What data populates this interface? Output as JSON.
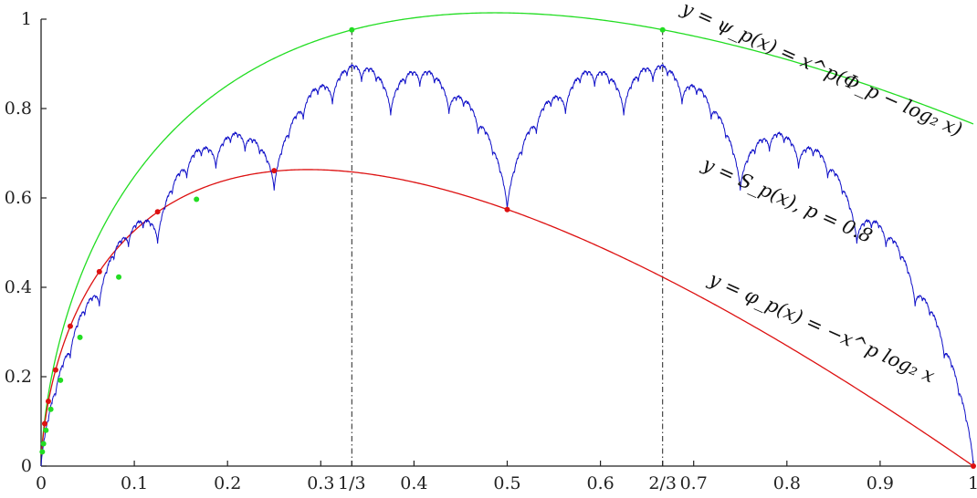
{
  "chart_data": {
    "type": "line",
    "xlim": [
      0,
      1
    ],
    "ylim": [
      0,
      1
    ],
    "grid": false,
    "x_ticks": [
      {
        "value": 0,
        "label": "0"
      },
      {
        "value": 0.1,
        "label": "0.1"
      },
      {
        "value": 0.2,
        "label": "0.2"
      },
      {
        "value": 0.3,
        "label": "0.3"
      },
      {
        "value": 0.3333,
        "label": "1/3"
      },
      {
        "value": 0.4,
        "label": "0.4"
      },
      {
        "value": 0.5,
        "label": "0.5"
      },
      {
        "value": 0.6,
        "label": "0.6"
      },
      {
        "value": 0.6667,
        "label": "2/3"
      },
      {
        "value": 0.7,
        "label": "0.7"
      },
      {
        "value": 0.8,
        "label": "0.8"
      },
      {
        "value": 0.9,
        "label": "0.9"
      },
      {
        "value": 1,
        "label": "1"
      }
    ],
    "y_ticks": [
      {
        "value": 0,
        "label": "0"
      },
      {
        "value": 0.2,
        "label": "0.2"
      },
      {
        "value": 0.4,
        "label": "0.4"
      },
      {
        "value": 0.6,
        "label": "0.6"
      },
      {
        "value": 0.8,
        "label": "0.8"
      },
      {
        "value": 1,
        "label": "1"
      }
    ],
    "parameter_p": 0.8,
    "series": [
      {
        "name": "y = ψ_p(x) = x^p(Φ_p − log₂ x)",
        "color": "#22dd22",
        "x": [
          0.0078,
          0.0156,
          0.0313,
          0.0625,
          0.125,
          0.1667,
          0.25,
          0.3333,
          0.4,
          0.5,
          0.6,
          0.6667,
          0.75,
          0.875,
          1.0
        ],
        "y": [
          0.064,
          0.127,
          0.286,
          0.471,
          0.684,
          0.795,
          0.905,
          0.976,
          1.003,
          1.015,
          1.0,
          0.976,
          0.93,
          0.84,
          0.763
        ]
      },
      {
        "name": "y = S_p(x), p = 0.8",
        "color": "#1010c8",
        "x": [
          0.0,
          0.0156,
          0.0313,
          0.0625,
          0.125,
          0.1667,
          0.25,
          0.3333,
          0.5,
          0.6667,
          0.75,
          0.8,
          0.875,
          1.0
        ],
        "y": [
          0.0,
          0.127,
          0.32,
          0.438,
          0.569,
          0.795,
          0.661,
          0.976,
          0.574,
          0.976,
          0.66,
          0.83,
          0.568,
          0.0
        ]
      },
      {
        "name": "y = φ_p(x) = −x^p log₂ x",
        "color": "#dd1111",
        "x": [
          0.0039,
          0.0078,
          0.0156,
          0.0313,
          0.0625,
          0.125,
          0.25,
          0.2865,
          0.5,
          0.75,
          1.0
        ],
        "y": [
          0.095,
          0.145,
          0.215,
          0.313,
          0.435,
          0.569,
          0.661,
          0.663,
          0.574,
          0.369,
          0.0
        ]
      }
    ],
    "guide_lines_x": [
      0.3333,
      0.6667
    ],
    "red_markers": {
      "x": [
        0.0039,
        0.0078,
        0.0156,
        0.0313,
        0.0625,
        0.125,
        0.25,
        0.5,
        1.0
      ],
      "y": [
        0.095,
        0.145,
        0.215,
        0.313,
        0.435,
        0.569,
        0.661,
        0.574,
        0.0
      ]
    },
    "green_markers": {
      "x": [
        0.0013,
        0.0026,
        0.0052,
        0.0104,
        0.0208,
        0.0417,
        0.0833,
        0.1667,
        0.3333,
        0.6667
      ],
      "y": [
        0.032,
        0.05,
        0.08,
        0.127,
        0.192,
        0.288,
        0.423,
        0.597,
        0.976,
        0.976
      ]
    },
    "annotations": [
      {
        "text": "y = ψ_p(x) = x^p(Φ_p − log₂ x)"
      },
      {
        "text": "y = S_p(x), p = 0.8"
      },
      {
        "text": "y = φ_p(x) = −x^p log₂ x"
      }
    ]
  },
  "colors": {
    "psi": "#22dd22",
    "takagi": "#1010c8",
    "phi": "#dd1111",
    "axis": "#222222"
  }
}
